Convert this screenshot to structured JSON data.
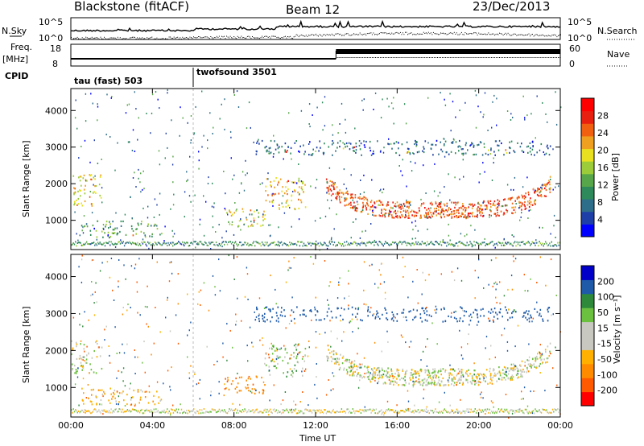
{
  "header": {
    "station": "Blackstone (fitACF)",
    "beam": "Beam 12",
    "date": "23/Dec/2013"
  },
  "strips": {
    "nsky_label": "N.Sky",
    "nsearch_label": "N.Search",
    "nsky_ticks": [
      "10^5",
      "10^0"
    ],
    "nsearch_ticks": [
      "10^5",
      "10^0"
    ],
    "freq_label": "Freq.",
    "freq_unit": "[MHz]",
    "freq_ticks": [
      "18",
      "8"
    ],
    "nave_label": "Nave",
    "nave_ticks": [
      "60",
      "0"
    ],
    "cpid_label": "CPID",
    "cpid_segments": [
      {
        "label": "tau (fast) 503",
        "start_hour": 0
      },
      {
        "label": "twofsound 3501",
        "start_hour": 6
      }
    ]
  },
  "colors": {
    "power_scale": [
      "#0000ff",
      "#1f3fa8",
      "#2e6e8a",
      "#2e8a5a",
      "#58a64a",
      "#9ccc3a",
      "#e8e020",
      "#f0a020",
      "#f06010",
      "#e82010",
      "#ff0000"
    ],
    "velocity_scale": [
      "#ff0000",
      "#ff5a00",
      "#ff8c00",
      "#ffb000",
      "#c8c8c0",
      "#c8c8c0",
      "#6cc040",
      "#2e8a3a",
      "#1e5aa8",
      "#0000c8"
    ]
  },
  "chart_data": [
    {
      "type": "heatmap",
      "title": "",
      "xlabel": "",
      "ylabel": "Slant Range [km]",
      "xlim": [
        0,
        24
      ],
      "ylim": [
        200,
        4600
      ],
      "x_ticks": [
        "00:00",
        "04:00",
        "08:00",
        "12:00",
        "16:00",
        "20:00",
        "00:00"
      ],
      "y_ticks": [
        1000,
        2000,
        3000,
        4000
      ],
      "colorbar": {
        "label": "Power [dB]",
        "range": [
          0,
          32
        ],
        "ticks": [
          4,
          8,
          12,
          16,
          20,
          24,
          28
        ]
      },
      "scatter_regions": [
        {
          "x_start": 0.0,
          "x_end": 1.5,
          "y_low": 1400,
          "y_high": 2300,
          "level": 20
        },
        {
          "x_start": 0.5,
          "x_end": 4.5,
          "y_low": 550,
          "y_high": 1000,
          "level": 12
        },
        {
          "x_start": 7.5,
          "x_end": 9.5,
          "y_low": 850,
          "y_high": 1350,
          "level": 18
        },
        {
          "x_start": 9.5,
          "x_end": 11.5,
          "y_low": 1300,
          "y_high": 2200,
          "level": 22
        },
        {
          "x_start": 12.5,
          "x_end": 23.5,
          "y_low": 900,
          "y_high": 2200,
          "level": 26
        },
        {
          "x_start": 9.0,
          "x_end": 23.5,
          "y_low": 2800,
          "y_high": 3200,
          "level": 6
        }
      ]
    },
    {
      "type": "heatmap",
      "title": "",
      "xlabel": "Time UT",
      "ylabel": "Slant Range [km]",
      "xlim": [
        0,
        24
      ],
      "ylim": [
        200,
        4600
      ],
      "x_ticks": [
        "00:00",
        "04:00",
        "08:00",
        "12:00",
        "16:00",
        "20:00",
        "00:00"
      ],
      "y_ticks": [
        1000,
        2000,
        3000,
        4000
      ],
      "colorbar": {
        "label": "Velocity [m s⁻¹]",
        "ticks": [
          "200",
          "100",
          "50",
          "15",
          "-15",
          "-50",
          "-100",
          "-200"
        ]
      },
      "scatter_regions": [
        {
          "x_start": 0.0,
          "x_end": 1.5,
          "y_low": 1400,
          "y_high": 2300,
          "level": 0
        },
        {
          "x_start": 0.5,
          "x_end": 4.5,
          "y_low": 550,
          "y_high": 1000,
          "level": -30
        },
        {
          "x_start": 7.5,
          "x_end": 9.5,
          "y_low": 850,
          "y_high": 1350,
          "level": -80
        },
        {
          "x_start": 9.5,
          "x_end": 11.5,
          "y_low": 1300,
          "y_high": 2200,
          "level": 30
        },
        {
          "x_start": 12.5,
          "x_end": 23.5,
          "y_low": 900,
          "y_high": 2200,
          "level": 0
        },
        {
          "x_start": 9.0,
          "x_end": 23.5,
          "y_low": 2800,
          "y_high": 3200,
          "level": 150
        }
      ]
    }
  ]
}
